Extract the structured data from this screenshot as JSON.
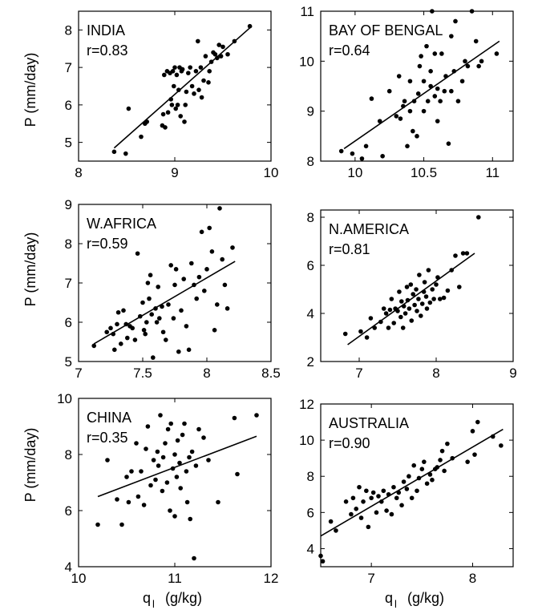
{
  "figure": {
    "y_axis_label": "P (mm/day)",
    "x_axis_label_main": "q",
    "x_axis_label_sub": "l",
    "x_axis_label_unit": "(g/kg)"
  },
  "chart_data": [
    {
      "type": "scatter",
      "region": "INDIA",
      "r_label": "r=0.83",
      "xlim": [
        8,
        10
      ],
      "ylim": [
        4.5,
        8.5
      ],
      "xticks": [
        8,
        9,
        10
      ],
      "yticks": [
        5,
        6,
        7,
        8
      ],
      "fit": {
        "x": [
          8.37,
          9.8
        ],
        "y": [
          4.85,
          8.1
        ]
      },
      "points": {
        "x": [
          8.37,
          8.49,
          8.52,
          8.65,
          8.69,
          8.71,
          8.87,
          8.88,
          8.89,
          8.9,
          8.92,
          8.93,
          8.95,
          8.96,
          8.97,
          8.98,
          8.99,
          9.0,
          9.01,
          9.02,
          9.03,
          9.04,
          9.05,
          9.06,
          9.07,
          9.08,
          9.1,
          9.11,
          9.12,
          9.14,
          9.16,
          9.18,
          9.2,
          9.22,
          9.24,
          9.25,
          9.27,
          9.28,
          9.3,
          9.32,
          9.35,
          9.36,
          9.38,
          9.4,
          9.42,
          9.44,
          9.46,
          9.48,
          9.5,
          9.55,
          9.62,
          9.78
        ],
        "y": [
          4.75,
          4.7,
          5.9,
          5.15,
          5.5,
          5.55,
          5.45,
          5.75,
          6.8,
          5.4,
          6.9,
          5.8,
          6.85,
          6.15,
          6.0,
          6.9,
          6.5,
          7.0,
          5.9,
          6.8,
          6.0,
          6.4,
          7.0,
          5.7,
          6.9,
          6.95,
          5.55,
          6.0,
          6.35,
          6.85,
          7.0,
          6.5,
          6.3,
          6.9,
          7.7,
          6.4,
          7.0,
          6.2,
          6.65,
          7.3,
          6.6,
          6.9,
          7.15,
          7.4,
          7.35,
          7.25,
          7.6,
          7.3,
          7.55,
          7.35,
          7.7,
          8.1
        ]
      }
    },
    {
      "type": "scatter",
      "region": "BAY OF BENGAL",
      "r_label": "r=0.64",
      "xlim": [
        9.75,
        11.15
      ],
      "ylim": [
        8,
        11
      ],
      "xticks": [
        10,
        10.5,
        11
      ],
      "yticks": [
        8,
        9,
        10,
        11
      ],
      "fit": {
        "x": [
          9.92,
          11.05
        ],
        "y": [
          8.25,
          10.4
        ]
      },
      "points": {
        "x": [
          9.9,
          9.98,
          10.05,
          10.08,
          10.12,
          10.18,
          10.2,
          10.25,
          10.3,
          10.32,
          10.33,
          10.35,
          10.36,
          10.38,
          10.4,
          10.4,
          10.42,
          10.43,
          10.45,
          10.46,
          10.47,
          10.48,
          10.5,
          10.5,
          10.52,
          10.53,
          10.55,
          10.55,
          10.56,
          10.58,
          10.58,
          10.6,
          10.6,
          10.62,
          10.63,
          10.65,
          10.66,
          10.68,
          10.7,
          10.7,
          10.72,
          10.73,
          10.75,
          10.78,
          10.8,
          10.82,
          10.85,
          10.88,
          10.9,
          10.92,
          11.03
        ],
        "y": [
          8.2,
          8.15,
          8.05,
          8.3,
          9.25,
          8.8,
          8.1,
          9.4,
          8.9,
          9.7,
          8.85,
          9.1,
          9.2,
          8.3,
          9.0,
          9.6,
          8.6,
          9.2,
          8.5,
          9.35,
          9.9,
          10.1,
          9.0,
          9.6,
          10.3,
          9.2,
          9.5,
          9.8,
          11.0,
          9.3,
          10.15,
          8.8,
          9.45,
          9.2,
          10.15,
          9.4,
          9.7,
          8.35,
          9.4,
          10.5,
          9.8,
          10.8,
          9.2,
          9.6,
          10.0,
          9.9,
          11.0,
          10.4,
          9.9,
          10.0,
          10.15
        ]
      }
    },
    {
      "type": "scatter",
      "region": "W.AFRICA",
      "r_label": "r=0.59",
      "xlim": [
        7,
        8.5
      ],
      "ylim": [
        5,
        9
      ],
      "xticks": [
        7,
        7.5,
        8,
        8.5
      ],
      "yticks": [
        5,
        6,
        7,
        8,
        9
      ],
      "fit": {
        "x": [
          7.12,
          8.22
        ],
        "y": [
          5.45,
          7.55
        ]
      },
      "points": {
        "x": [
          7.12,
          7.22,
          7.25,
          7.27,
          7.28,
          7.3,
          7.31,
          7.33,
          7.35,
          7.37,
          7.38,
          7.4,
          7.42,
          7.44,
          7.46,
          7.48,
          7.5,
          7.51,
          7.52,
          7.53,
          7.54,
          7.55,
          7.56,
          7.57,
          7.58,
          7.6,
          7.61,
          7.62,
          7.63,
          7.65,
          7.66,
          7.68,
          7.7,
          7.72,
          7.74,
          7.75,
          7.76,
          7.78,
          7.8,
          7.82,
          7.84,
          7.86,
          7.88,
          7.9,
          7.92,
          7.94,
          7.96,
          7.98,
          8.0,
          8.02,
          8.04,
          8.06,
          8.08,
          8.1,
          8.12,
          8.14,
          8.16,
          8.2
        ],
        "y": [
          5.4,
          5.75,
          5.85,
          5.7,
          5.3,
          5.95,
          6.25,
          5.45,
          6.3,
          5.95,
          5.6,
          5.9,
          5.85,
          5.55,
          7.75,
          6.15,
          6.5,
          5.8,
          5.7,
          6.0,
          7.0,
          6.6,
          7.2,
          6.2,
          5.1,
          6.35,
          6.0,
          6.9,
          6.1,
          6.4,
          5.75,
          5.55,
          6.45,
          7.45,
          6.1,
          6.95,
          7.35,
          5.25,
          6.3,
          7.1,
          5.9,
          5.3,
          7.5,
          6.95,
          6.6,
          7.15,
          8.3,
          6.8,
          7.35,
          8.4,
          7.8,
          5.8,
          6.45,
          8.9,
          7.6,
          6.95,
          6.35,
          7.9
        ]
      }
    },
    {
      "type": "scatter",
      "region": "N.AMERICA",
      "r_label": "r=0.81",
      "xlim": [
        6.5,
        9
      ],
      "ylim": [
        2,
        8.3
      ],
      "xticks": [
        7,
        8,
        9
      ],
      "yticks": [
        2,
        4,
        6,
        8
      ],
      "fit": {
        "x": [
          6.85,
          8.5
        ],
        "y": [
          2.7,
          6.5
        ]
      },
      "points": {
        "x": [
          6.82,
          7.02,
          7.1,
          7.15,
          7.2,
          7.28,
          7.32,
          7.35,
          7.38,
          7.4,
          7.42,
          7.45,
          7.47,
          7.5,
          7.52,
          7.54,
          7.55,
          7.57,
          7.58,
          7.6,
          7.62,
          7.63,
          7.65,
          7.67,
          7.68,
          7.7,
          7.72,
          7.74,
          7.75,
          7.77,
          7.78,
          7.8,
          7.82,
          7.84,
          7.85,
          7.87,
          7.88,
          7.9,
          7.92,
          7.95,
          7.97,
          8.0,
          8.02,
          8.05,
          8.1,
          8.15,
          8.2,
          8.25,
          8.3,
          8.35,
          8.4,
          8.55
        ],
        "y": [
          3.15,
          3.25,
          3.0,
          3.8,
          3.4,
          3.65,
          4.2,
          4.0,
          3.4,
          4.15,
          4.6,
          3.6,
          4.2,
          4.1,
          4.9,
          3.85,
          4.5,
          3.4,
          4.3,
          4.0,
          5.1,
          4.55,
          4.2,
          5.2,
          3.7,
          4.8,
          4.35,
          5.0,
          4.1,
          4.6,
          5.6,
          3.9,
          4.4,
          4.9,
          5.3,
          4.7,
          4.2,
          5.8,
          4.45,
          5.0,
          4.6,
          5.2,
          5.5,
          4.6,
          4.65,
          4.95,
          5.8,
          6.4,
          5.1,
          6.5,
          6.5,
          8.0
        ]
      }
    },
    {
      "type": "scatter",
      "region": "CHINA",
      "r_label": "r=0.35",
      "xlim": [
        10,
        12
      ],
      "ylim": [
        4,
        10
      ],
      "xticks": [
        10,
        11,
        12
      ],
      "yticks": [
        4,
        6,
        8,
        10
      ],
      "fit": {
        "x": [
          10.2,
          11.85
        ],
        "y": [
          6.5,
          8.65
        ]
      },
      "points": {
        "x": [
          10.2,
          10.3,
          10.4,
          10.45,
          10.5,
          10.52,
          10.55,
          10.6,
          10.62,
          10.65,
          10.68,
          10.7,
          10.72,
          10.75,
          10.78,
          10.8,
          10.82,
          10.83,
          10.85,
          10.87,
          10.88,
          10.9,
          10.92,
          10.93,
          10.95,
          10.96,
          10.98,
          11.0,
          11.0,
          11.02,
          11.03,
          11.05,
          11.06,
          11.08,
          11.1,
          11.12,
          11.13,
          11.15,
          11.16,
          11.18,
          11.2,
          11.22,
          11.25,
          11.3,
          11.35,
          11.45,
          11.62,
          11.65,
          11.85
        ],
        "y": [
          5.5,
          7.8,
          6.4,
          5.5,
          7.2,
          6.3,
          7.4,
          8.4,
          6.5,
          7.4,
          6.2,
          8.2,
          9.0,
          6.9,
          7.8,
          7.1,
          8.1,
          7.6,
          9.4,
          6.7,
          7.9,
          8.4,
          7.0,
          8.9,
          6.0,
          9.1,
          7.5,
          5.8,
          8.0,
          7.2,
          8.5,
          7.7,
          6.8,
          8.7,
          9.1,
          7.4,
          6.3,
          7.9,
          5.7,
          8.1,
          4.3,
          7.6,
          8.9,
          8.6,
          7.8,
          6.3,
          9.3,
          7.3,
          9.4
        ]
      }
    },
    {
      "type": "scatter",
      "region": "AUSTRALIA",
      "r_label": "r=0.90",
      "xlim": [
        6.5,
        8.4
      ],
      "ylim": [
        3,
        12
      ],
      "xticks": [
        7,
        8
      ],
      "yticks": [
        4,
        6,
        8,
        10,
        12
      ],
      "fit": {
        "x": [
          6.5,
          8.3
        ],
        "y": [
          4.7,
          10.6
        ]
      },
      "points": {
        "x": [
          6.5,
          6.52,
          6.6,
          6.65,
          6.75,
          6.8,
          6.82,
          6.85,
          6.88,
          6.9,
          6.92,
          6.95,
          6.97,
          7.0,
          7.02,
          7.05,
          7.07,
          7.1,
          7.12,
          7.15,
          7.17,
          7.2,
          7.22,
          7.25,
          7.27,
          7.3,
          7.32,
          7.35,
          7.37,
          7.4,
          7.42,
          7.45,
          7.47,
          7.5,
          7.52,
          7.55,
          7.58,
          7.6,
          7.63,
          7.65,
          7.68,
          7.7,
          7.72,
          7.75,
          7.8,
          7.95,
          8.0,
          8.02,
          8.05,
          8.2,
          8.28
        ],
        "y": [
          3.6,
          3.3,
          5.5,
          5.0,
          6.6,
          5.9,
          6.8,
          6.2,
          7.4,
          5.7,
          6.6,
          7.2,
          5.2,
          6.8,
          7.1,
          6.0,
          6.9,
          6.6,
          7.2,
          6.1,
          7.0,
          5.9,
          7.4,
          6.8,
          7.1,
          6.4,
          7.7,
          7.3,
          8.0,
          6.8,
          8.6,
          7.2,
          7.9,
          8.4,
          8.8,
          7.6,
          8.1,
          7.8,
          8.4,
          8.5,
          8.9,
          9.4,
          8.3,
          9.8,
          9.0,
          8.8,
          10.5,
          9.2,
          11.0,
          10.2,
          9.7
        ]
      }
    }
  ]
}
